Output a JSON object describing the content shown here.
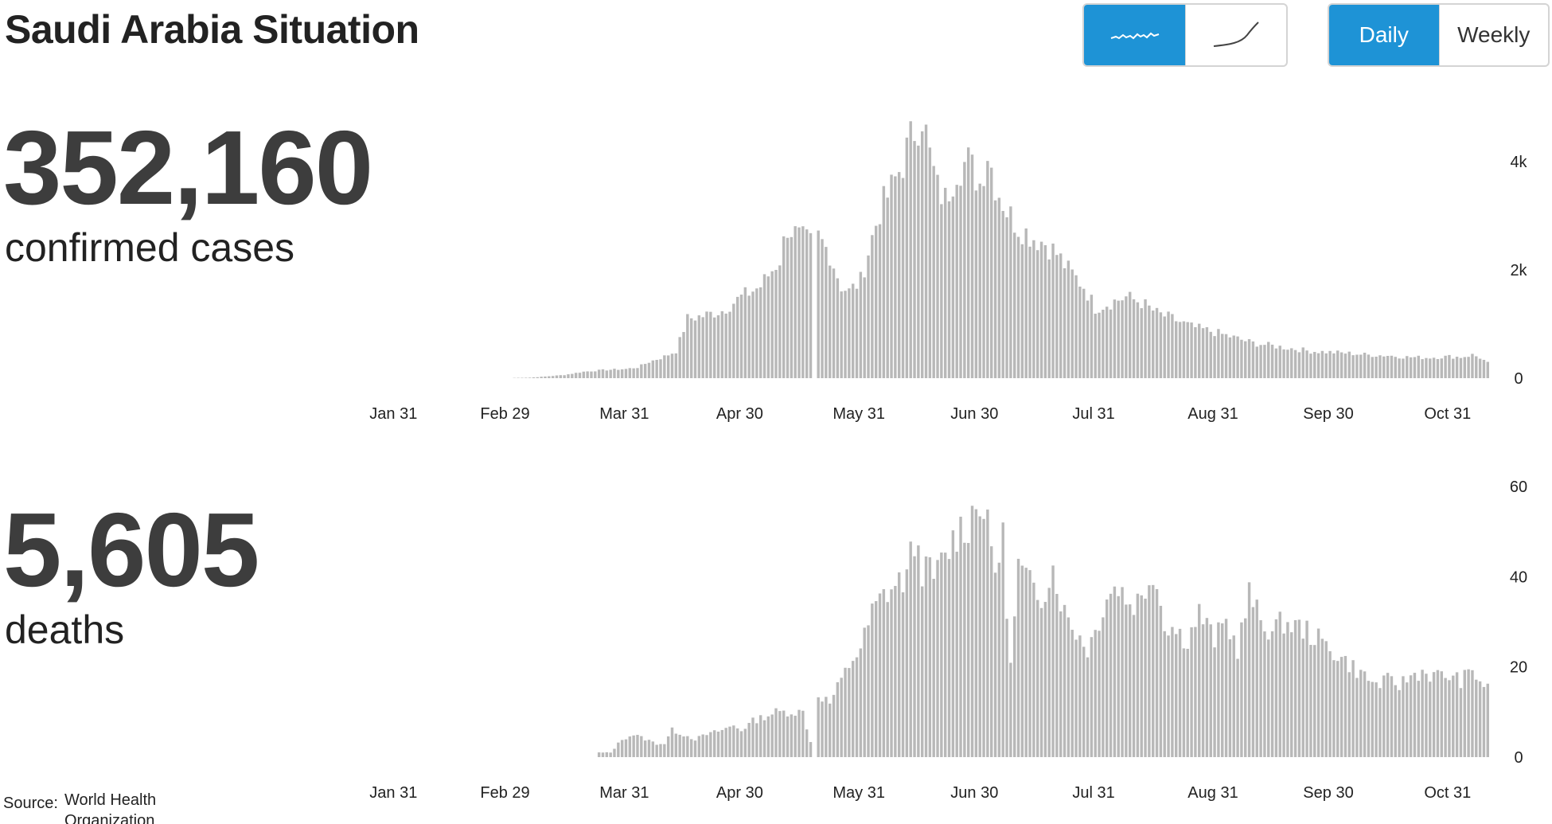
{
  "page": {
    "title": "Saudi Arabia Situation"
  },
  "controls": {
    "shape_toggle": {
      "options": [
        "daily-wave-icon",
        "cumulative-curve-icon"
      ],
      "selected": "daily-wave-icon"
    },
    "period_toggle": {
      "daily_label": "Daily",
      "weekly_label": "Weekly",
      "selected": "Daily"
    }
  },
  "stats": {
    "cases": {
      "value": "352,160",
      "label": "confirmed cases"
    },
    "deaths": {
      "value": "5,605",
      "label": "deaths"
    }
  },
  "source": {
    "label": "Source:",
    "name": "World Health Organization"
  },
  "colors": {
    "accent": "#1e93d6",
    "bar": "#b8b8b8",
    "text": "#222222",
    "big_number": "#3d3d3d"
  },
  "chart_data": [
    {
      "type": "bar",
      "id": "cases",
      "x_ticks": [
        "Jan 31",
        "Feb 29",
        "Mar 31",
        "Apr 30",
        "May 31",
        "Jun 30",
        "Jul 31",
        "Aug 31",
        "Sep 30",
        "Oct 31"
      ],
      "y_ticks": [
        "0",
        "2k",
        "4k"
      ],
      "y_tick_values": [
        0,
        2000,
        4000
      ],
      "ylim": [
        0,
        4900
      ],
      "x_start": "2020-01-21",
      "x_end": "2020-11-10",
      "values": [
        0,
        0,
        0,
        0,
        0,
        0,
        0,
        0,
        0,
        0,
        0,
        0,
        0,
        0,
        0,
        0,
        0,
        0,
        0,
        0,
        0,
        0,
        0,
        0,
        0,
        0,
        0,
        0,
        0,
        0,
        0,
        0,
        0,
        0,
        0,
        0,
        0,
        0,
        0,
        0,
        0,
        0,
        0,
        0,
        0,
        0,
        0,
        0,
        0,
        0,
        0,
        0,
        0,
        0,
        0,
        0,
        0,
        0,
        0,
        0,
        0,
        0,
        0,
        0,
        0,
        0,
        0,
        0,
        0,
        0,
        0,
        0,
        0,
        0,
        0,
        0,
        0,
        0,
        0,
        0,
        0,
        0,
        0,
        0,
        0,
        0,
        0,
        0,
        0,
        0,
        0,
        0,
        0,
        0,
        0,
        0,
        0,
        0,
        0,
        0,
        0,
        0,
        0,
        0,
        0,
        0,
        0,
        0,
        0,
        0,
        0,
        0,
        0,
        0,
        0,
        0,
        0,
        0,
        0,
        0,
        0,
        0,
        0,
        0,
        0,
        0,
        0,
        0,
        0,
        0,
        0,
        0,
        0,
        0,
        0,
        0,
        0,
        0,
        0,
        0,
        0,
        0,
        0,
        0,
        0,
        0,
        0,
        0,
        0,
        0,
        0,
        0,
        0,
        0,
        0,
        0,
        0,
        0,
        0,
        0,
        0,
        0,
        0,
        0,
        0,
        0,
        0,
        0,
        0,
        0,
        0,
        0,
        0,
        0,
        0,
        0,
        0,
        0,
        0,
        0,
        0,
        0,
        0,
        0,
        0,
        0,
        0,
        0,
        0,
        0,
        0,
        0,
        0,
        0,
        0,
        0,
        0,
        0,
        0,
        0,
        0,
        0,
        0,
        0,
        0,
        0,
        0,
        0,
        0,
        0,
        0,
        0,
        0,
        0,
        0,
        0,
        0,
        0,
        0,
        0,
        0,
        0,
        0,
        0,
        0,
        0,
        0,
        0,
        0,
        0,
        0,
        0,
        0,
        0,
        0,
        0,
        0,
        0,
        0,
        0,
        0,
        0,
        0,
        0,
        0,
        0,
        0,
        0,
        0,
        0,
        0,
        0,
        0,
        0,
        0,
        0,
        0,
        0,
        0,
        0,
        0,
        0,
        0,
        0,
        0,
        0,
        0,
        0,
        0,
        0,
        0,
        0,
        0,
        0,
        0,
        0,
        0,
        0,
        0,
        0,
        0,
        0,
        0,
        0,
        0,
        0,
        0,
        0,
        0,
        0,
        0,
        0,
        0,
        0,
        0,
        0,
        0,
        0,
        0,
        0,
        0,
        0,
        0,
        0,
        0,
        0,
        0,
        0,
        0,
        0,
        0,
        0,
        0,
        0,
        0,
        0,
        0,
        0,
        0,
        0,
        0,
        0,
        0,
        0,
        0,
        0,
        0,
        0,
        0,
        0,
        0,
        0,
        0
      ],
      "anchors": [
        [
          "2020-03-01",
          0
        ],
        [
          "2020-03-02",
          5
        ],
        [
          "2020-03-06",
          10
        ],
        [
          "2020-03-10",
          30
        ],
        [
          "2020-03-15",
          60
        ],
        [
          "2020-03-20",
          120
        ],
        [
          "2020-03-25",
          150
        ],
        [
          "2020-03-31",
          170
        ],
        [
          "2020-04-03",
          200
        ],
        [
          "2020-04-06",
          300
        ],
        [
          "2020-04-10",
          400
        ],
        [
          "2020-04-13",
          500
        ],
        [
          "2020-04-16",
          1100
        ],
        [
          "2020-04-20",
          1150
        ],
        [
          "2020-04-25",
          1250
        ],
        [
          "2020-04-30",
          1500
        ],
        [
          "2020-05-05",
          1700
        ],
        [
          "2020-05-10",
          2200
        ],
        [
          "2020-05-12",
          2800
        ],
        [
          "2020-05-15",
          2600
        ],
        [
          "2020-05-18",
          2500
        ],
        [
          "2020-05-19",
          0
        ],
        [
          "2020-05-20",
          2600
        ],
        [
          "2020-05-23",
          2300
        ],
        [
          "2020-05-26",
          1700
        ],
        [
          "2020-05-28",
          1600
        ],
        [
          "2020-05-31",
          1800
        ],
        [
          "2020-06-03",
          2600
        ],
        [
          "2020-06-05",
          3100
        ],
        [
          "2020-06-08",
          3500
        ],
        [
          "2020-06-11",
          4000
        ],
        [
          "2020-06-14",
          4600
        ],
        [
          "2020-06-16",
          4900
        ],
        [
          "2020-06-18",
          4100
        ],
        [
          "2020-06-20",
          3500
        ],
        [
          "2020-06-22",
          3300
        ],
        [
          "2020-06-25",
          3900
        ],
        [
          "2020-06-28",
          4000
        ],
        [
          "2020-07-01",
          3600
        ],
        [
          "2020-07-03",
          4200
        ],
        [
          "2020-07-05",
          3600
        ],
        [
          "2020-07-08",
          3100
        ],
        [
          "2020-07-11",
          2800
        ],
        [
          "2020-07-15",
          2600
        ],
        [
          "2020-07-18",
          2500
        ],
        [
          "2020-07-21",
          2300
        ],
        [
          "2020-07-24",
          2000
        ],
        [
          "2020-07-28",
          1700
        ],
        [
          "2020-07-31",
          1300
        ],
        [
          "2020-08-04",
          1400
        ],
        [
          "2020-08-08",
          1500
        ],
        [
          "2020-08-12",
          1400
        ],
        [
          "2020-08-16",
          1200
        ],
        [
          "2020-08-20",
          1100
        ],
        [
          "2020-08-25",
          950
        ],
        [
          "2020-08-31",
          850
        ],
        [
          "2020-09-05",
          750
        ],
        [
          "2020-09-10",
          650
        ],
        [
          "2020-09-15",
          600
        ],
        [
          "2020-09-20",
          550
        ],
        [
          "2020-09-25",
          500
        ],
        [
          "2020-09-30",
          480
        ],
        [
          "2020-10-05",
          460
        ],
        [
          "2020-10-10",
          430
        ],
        [
          "2020-10-15",
          420
        ],
        [
          "2020-10-20",
          390
        ],
        [
          "2020-10-25",
          380
        ],
        [
          "2020-10-31",
          400
        ],
        [
          "2020-11-03",
          390
        ],
        [
          "2020-11-06",
          430
        ],
        [
          "2020-11-08",
          380
        ],
        [
          "2020-11-10",
          280
        ]
      ]
    },
    {
      "type": "bar",
      "id": "deaths",
      "x_ticks": [
        "Jan 31",
        "Feb 29",
        "Mar 31",
        "Apr 30",
        "May 31",
        "Jun 30",
        "Jul 31",
        "Aug 31",
        "Sep 30",
        "Oct 31"
      ],
      "y_ticks": [
        "0",
        "20",
        "40",
        "60"
      ],
      "y_tick_values": [
        0,
        20,
        40,
        60
      ],
      "ylim": [
        0,
        60
      ],
      "x_start": "2020-01-21",
      "x_end": "2020-11-10",
      "anchors": [
        [
          "2020-03-24",
          1
        ],
        [
          "2020-03-27",
          1
        ],
        [
          "2020-03-28",
          2
        ],
        [
          "2020-03-30",
          4
        ],
        [
          "2020-04-02",
          5
        ],
        [
          "2020-04-05",
          4
        ],
        [
          "2020-04-08",
          3
        ],
        [
          "2020-04-10",
          3
        ],
        [
          "2020-04-12",
          6
        ],
        [
          "2020-04-15",
          5
        ],
        [
          "2020-04-18",
          4
        ],
        [
          "2020-04-21",
          5
        ],
        [
          "2020-04-25",
          6
        ],
        [
          "2020-04-28",
          7
        ],
        [
          "2020-04-30",
          6
        ],
        [
          "2020-05-03",
          8
        ],
        [
          "2020-05-06",
          9
        ],
        [
          "2020-05-09",
          10
        ],
        [
          "2020-05-12",
          10
        ],
        [
          "2020-05-16",
          10
        ],
        [
          "2020-05-19",
          0
        ],
        [
          "2020-05-20",
          14
        ],
        [
          "2020-05-23",
          12
        ],
        [
          "2020-05-26",
          17
        ],
        [
          "2020-05-29",
          22
        ],
        [
          "2020-05-31",
          24
        ],
        [
          "2020-06-03",
          32
        ],
        [
          "2020-06-06",
          36
        ],
        [
          "2020-06-09",
          38
        ],
        [
          "2020-06-12",
          40
        ],
        [
          "2020-06-14",
          48
        ],
        [
          "2020-06-16",
          42
        ],
        [
          "2020-06-19",
          40
        ],
        [
          "2020-06-22",
          44
        ],
        [
          "2020-06-25",
          50
        ],
        [
          "2020-06-28",
          52
        ],
        [
          "2020-07-01",
          58
        ],
        [
          "2020-07-03",
          50
        ],
        [
          "2020-07-05",
          42
        ],
        [
          "2020-07-07",
          48
        ],
        [
          "2020-07-09",
          20
        ],
        [
          "2020-07-11",
          42
        ],
        [
          "2020-07-14",
          38
        ],
        [
          "2020-07-17",
          36
        ],
        [
          "2020-07-20",
          42
        ],
        [
          "2020-07-23",
          32
        ],
        [
          "2020-07-26",
          28
        ],
        [
          "2020-07-29",
          24
        ],
        [
          "2020-07-31",
          28
        ],
        [
          "2020-08-03",
          36
        ],
        [
          "2020-08-06",
          38
        ],
        [
          "2020-08-09",
          34
        ],
        [
          "2020-08-12",
          35
        ],
        [
          "2020-08-15",
          42
        ],
        [
          "2020-08-18",
          30
        ],
        [
          "2020-08-21",
          28
        ],
        [
          "2020-08-24",
          26
        ],
        [
          "2020-08-27",
          32
        ],
        [
          "2020-08-31",
          26
        ],
        [
          "2020-09-03",
          30
        ],
        [
          "2020-09-06",
          24
        ],
        [
          "2020-09-09",
          36
        ],
        [
          "2020-09-12",
          30
        ],
        [
          "2020-09-15",
          28
        ],
        [
          "2020-09-18",
          30
        ],
        [
          "2020-09-21",
          29
        ],
        [
          "2020-09-24",
          28
        ],
        [
          "2020-09-27",
          26
        ],
        [
          "2020-09-30",
          24
        ],
        [
          "2020-10-03",
          22
        ],
        [
          "2020-10-06",
          20
        ],
        [
          "2020-10-09",
          18
        ],
        [
          "2020-10-12",
          16
        ],
        [
          "2020-10-15",
          17
        ],
        [
          "2020-10-18",
          16
        ],
        [
          "2020-10-21",
          18
        ],
        [
          "2020-10-24",
          19
        ],
        [
          "2020-10-27",
          18
        ],
        [
          "2020-10-31",
          18
        ],
        [
          "2020-11-03",
          17
        ],
        [
          "2020-11-06",
          19
        ],
        [
          "2020-11-08",
          17
        ],
        [
          "2020-11-10",
          15
        ]
      ]
    }
  ]
}
